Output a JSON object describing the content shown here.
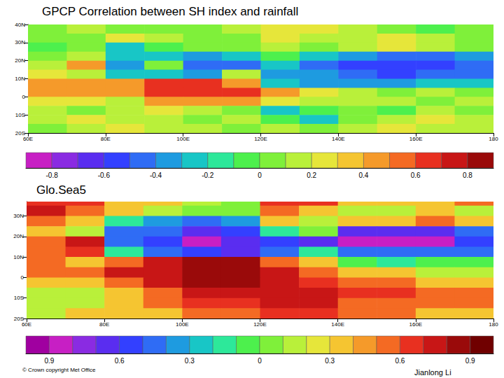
{
  "chart_data": [
    {
      "type": "heatmap",
      "title": "GPCP Correlation between SH index and rainfall",
      "x": [
        65,
        75,
        85,
        95,
        105,
        115,
        125,
        135,
        145,
        155,
        165,
        175
      ],
      "y": [
        37.5,
        32.5,
        27.5,
        22.5,
        17.5,
        12.5,
        7.5,
        2.5,
        -2.5,
        -7.5,
        -12.5,
        -17.5
      ],
      "cells": [
        [
          0.0,
          0.1,
          0.05,
          0.0,
          0.0,
          0.1,
          0.2,
          0.3,
          0.1,
          0.0,
          -0.1,
          0.0
        ],
        [
          0.0,
          0.05,
          0.2,
          0.1,
          0.0,
          0.05,
          0.2,
          0.1,
          0.1,
          0.2,
          0.1,
          0.0
        ],
        [
          -0.1,
          0.0,
          -0.2,
          -0.1,
          0.0,
          0.0,
          0.1,
          0.0,
          0.1,
          0.2,
          0.1,
          0.0
        ],
        [
          0.0,
          0.1,
          -0.3,
          -0.3,
          -0.4,
          -0.2,
          -0.1,
          -0.3,
          -0.4,
          -0.5,
          -0.5,
          -0.4
        ],
        [
          0.1,
          0.5,
          -0.4,
          0.0,
          -0.5,
          -0.5,
          -0.2,
          -0.5,
          -0.6,
          -0.6,
          -0.6,
          -0.5
        ],
        [
          0.2,
          0.1,
          -0.2,
          -0.2,
          -0.4,
          0.1,
          -0.4,
          -0.4,
          -0.5,
          -0.6,
          -0.5,
          -0.5
        ],
        [
          0.4,
          0.4,
          0.5,
          0.6,
          0.6,
          0.4,
          -0.2,
          -0.4,
          -0.4,
          -0.4,
          -0.3,
          -0.3
        ],
        [
          0.4,
          0.5,
          0.5,
          0.6,
          0.6,
          0.6,
          0.4,
          0.2,
          0.1,
          0.0,
          0.1,
          0.0
        ],
        [
          0.2,
          0.2,
          0.1,
          0.5,
          0.4,
          0.5,
          0.2,
          0.1,
          0.1,
          0.1,
          0.0,
          0.1
        ],
        [
          0.1,
          0.0,
          0.1,
          0.2,
          0.1,
          0.0,
          -0.2,
          -0.1,
          0.0,
          -0.1,
          0.1,
          0.0
        ],
        [
          0.1,
          0.2,
          0.1,
          0.1,
          0.0,
          0.1,
          -0.1,
          -0.2,
          0.0,
          0.1,
          0.2,
          0.1
        ],
        [
          0.0,
          0.1,
          0.2,
          0.1,
          0.1,
          0.0,
          0.1,
          0.0,
          0.1,
          0.2,
          0.1,
          0.1
        ]
      ],
      "xlim": [
        60,
        180
      ],
      "xticks": [
        {
          "value": 60,
          "label": "60E"
        },
        {
          "value": 80,
          "label": "80E"
        },
        {
          "value": 100,
          "label": "100E"
        },
        {
          "value": 120,
          "label": "120E"
        },
        {
          "value": 140,
          "label": "140E"
        },
        {
          "value": 160,
          "label": "160E"
        },
        180
      ],
      "ylim": [
        -20,
        40
      ],
      "yticks": [
        {
          "value": -20,
          "label": "20S"
        },
        {
          "value": -10,
          "label": "10S"
        },
        0,
        {
          "value": 10,
          "label": "10N"
        },
        {
          "value": 20,
          "label": "20N"
        },
        {
          "value": 30,
          "label": "30N"
        },
        {
          "value": 40,
          "label": "40N"
        }
      ],
      "colorbar": {
        "range": [
          -0.9,
          0.9
        ],
        "ticks": [
          -0.8,
          -0.6,
          -0.4,
          -0.2,
          0,
          0.2,
          0.4,
          0.6,
          0.8
        ],
        "colors": [
          "#c71fc4",
          "#8a2be2",
          "#5a2df0",
          "#3340ff",
          "#2f6cf5",
          "#1e9be0",
          "#18c6c6",
          "#2de89a",
          "#4df04d",
          "#7ff03a",
          "#b9f03a",
          "#e6e63a",
          "#f5c531",
          "#f59a2a",
          "#f46a23",
          "#e83020",
          "#c81616",
          "#9a0a0a"
        ]
      }
    },
    {
      "type": "heatmap",
      "title": "Glo.Sea5",
      "x": [
        65,
        75,
        85,
        95,
        105,
        115,
        125,
        135,
        145,
        155,
        165,
        175
      ],
      "y": [
        37.5,
        32.5,
        27.5,
        22.5,
        17.5,
        12.5,
        7.5,
        2.5,
        -2.5,
        -7.5,
        -12.5,
        -17.5
      ],
      "cells": [
        [
          0.6,
          0.6,
          0.4,
          0.4,
          0.2,
          0.0,
          0.6,
          0.6,
          0.4,
          0.3,
          0.4,
          0.5
        ],
        [
          0.7,
          0.5,
          0.3,
          0.1,
          0.0,
          0.0,
          0.5,
          0.3,
          0.1,
          0.2,
          0.3,
          0.2
        ],
        [
          0.5,
          0.3,
          -0.2,
          -0.3,
          -0.5,
          -0.3,
          0.3,
          0.2,
          0.3,
          0.4,
          0.5,
          0.4
        ],
        [
          0.3,
          0.1,
          -0.4,
          -0.5,
          -0.7,
          -0.6,
          -0.2,
          0.0,
          -0.7,
          -0.7,
          -0.7,
          -0.5
        ],
        [
          0.5,
          0.7,
          -0.4,
          -0.6,
          -0.8,
          -0.7,
          -0.6,
          -0.7,
          -0.8,
          -0.8,
          -0.8,
          -0.6
        ],
        [
          0.5,
          0.6,
          -0.2,
          -0.5,
          -0.6,
          -0.7,
          -0.5,
          -0.2,
          -0.5,
          -0.5,
          -0.5,
          -0.4
        ],
        [
          0.5,
          0.3,
          0.5,
          0.7,
          0.8,
          0.8,
          0.5,
          0.3,
          -0.1,
          -0.2,
          -0.1,
          -0.1
        ],
        [
          0.5,
          0.5,
          0.7,
          0.7,
          0.85,
          0.85,
          0.7,
          0.5,
          0.3,
          0.3,
          0.1,
          0.1
        ],
        [
          0.3,
          0.4,
          0.5,
          0.7,
          0.8,
          0.8,
          0.7,
          0.6,
          0.5,
          0.5,
          0.3,
          0.3
        ],
        [
          0.1,
          0.1,
          0.3,
          0.5,
          0.7,
          0.7,
          0.7,
          0.7,
          0.6,
          0.6,
          0.5,
          0.5
        ],
        [
          0.1,
          0.2,
          0.3,
          0.5,
          0.6,
          0.6,
          0.7,
          0.7,
          0.5,
          0.5,
          0.5,
          0.5
        ],
        [
          0.2,
          0.3,
          0.4,
          0.4,
          0.5,
          0.5,
          0.6,
          0.6,
          0.5,
          0.5,
          0.3,
          0.3
        ]
      ],
      "xlim": [
        60,
        180
      ],
      "xticks": [
        {
          "value": 60,
          "label": "60E"
        },
        {
          "value": 80,
          "label": "80E"
        },
        {
          "value": 100,
          "label": "100E"
        },
        {
          "value": 120,
          "label": "120E"
        },
        {
          "value": 140,
          "label": "140E"
        },
        {
          "value": 160,
          "label": "160E"
        },
        180
      ],
      "ylim": [
        -20,
        37
      ],
      "yticks": [
        {
          "value": -20,
          "label": "20S"
        },
        {
          "value": -10,
          "label": "10S"
        },
        0,
        {
          "value": 10,
          "label": "10N"
        },
        {
          "value": 20,
          "label": "20N"
        },
        {
          "value": 30,
          "label": "30N"
        }
      ],
      "colorbar": {
        "range": [
          -1,
          1
        ],
        "ticks": [
          {
            "value": -0.9,
            "label": "0.9"
          },
          {
            "value": -0.6,
            "label": "0.6"
          },
          {
            "value": -0.3,
            "label": "0.3"
          },
          0,
          0.3,
          0.6,
          0.9
        ],
        "colors": [
          "#a000a0",
          "#c71fc4",
          "#8a2be2",
          "#5a2df0",
          "#3340ff",
          "#2f6cf5",
          "#1e9be0",
          "#18c6c6",
          "#2de89a",
          "#4df04d",
          "#7ff03a",
          "#b9f03a",
          "#e6e63a",
          "#f5c531",
          "#f59a2a",
          "#f46a23",
          "#e83020",
          "#c81616",
          "#9a0a0a",
          "#700000"
        ]
      },
      "annotations": [
        "© Crown copyright Met Office",
        "Jianlong Li"
      ]
    }
  ]
}
